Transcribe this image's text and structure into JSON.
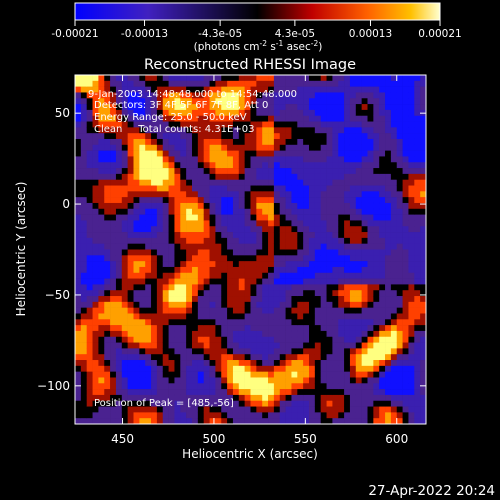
{
  "colorbar": {
    "ticks": [
      "-0.00021",
      "-0.00013",
      "-4.3e-05",
      "4.3e-05",
      "0.00013",
      "0.00021"
    ],
    "tick_values": [
      -0.00021,
      -0.00013,
      -4.3e-05,
      4.3e-05,
      0.00013,
      0.00021
    ],
    "range": [
      -0.00021,
      0.00021
    ],
    "units_pre": "(photons cm",
    "units_exp1": "-2",
    "units_mid1": " s",
    "units_exp2": "-1",
    "units_mid2": " asec",
    "units_exp3": "-2",
    "units_post": ")"
  },
  "chart_data": {
    "type": "heatmap",
    "title": "Reconstructed RHESSI Image",
    "xlabel": "Heliocentric X (arcsec)",
    "ylabel": "Heliocentric Y (arcsec)",
    "xlim": [
      424,
      616
    ],
    "ylim": [
      -121,
      71
    ],
    "xticks": [
      450,
      500,
      550,
      600
    ],
    "yticks": [
      50,
      0,
      -50,
      -100
    ],
    "colormap": [
      "#1010ff",
      "#3a1fb0",
      "#4a2290",
      "#000000",
      "#a01000",
      "#ff4000",
      "#ffa000",
      "#ffff80"
    ],
    "annotations": [
      "9-Jan-2003 14:48:48.000 to 14:54:48.000",
      "Detectors: 3F 4F 5F 6F 7F 8F, Att 0",
      "Energy Range: 25.0 - 50.0 keV",
      "Clean     Total counts: 4.31E+03"
    ],
    "peak_label": "Position of Peak = [485,-56]",
    "peak": [
      485,
      -56
    ]
  },
  "footer": {
    "timestamp": "27-Apr-2022 20:24"
  }
}
